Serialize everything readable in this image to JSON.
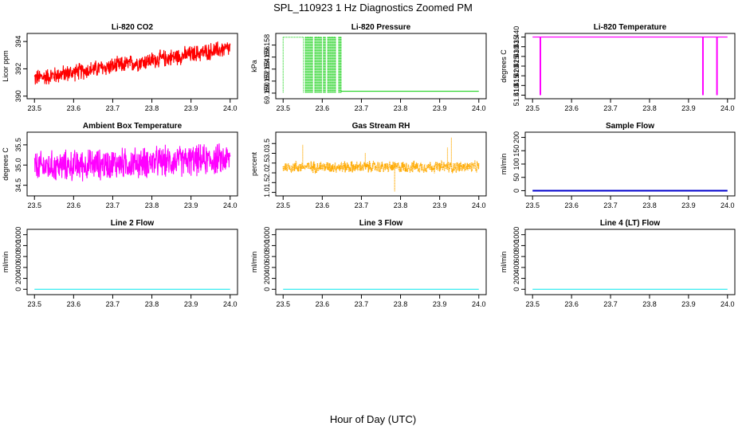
{
  "figure": {
    "title": "SPL_110923  1 Hz Diagnostics Zoomed PM",
    "xlabel": "Hour of Day (UTC)"
  },
  "chart_data": [
    {
      "id": "co2",
      "type": "line",
      "title": "Li-820 CO2",
      "ylabel": "Licor ppm",
      "color": "#ff0000",
      "pattern": "noise",
      "xlim": [
        23.5,
        24.0
      ],
      "ylim": [
        390,
        394.4
      ],
      "xticks": [
        23.5,
        23.6,
        23.7,
        23.8,
        23.9,
        24.0
      ],
      "xtick_labels": [
        "23.5",
        "23.6",
        "23.7",
        "23.8",
        "23.9",
        "24.0"
      ],
      "yticks": [
        390,
        392,
        394
      ],
      "ytick_labels": [
        "390",
        "392",
        "394"
      ],
      "series": [
        {
          "name": "CO2",
          "trend_start": 391.3,
          "trend_end": 393.5,
          "spread": 0.75,
          "min": 390.05,
          "max": 394.2
        }
      ]
    },
    {
      "id": "pressure",
      "type": "line",
      "title": "Li-820 Pressure",
      "ylabel": "kPa",
      "color": "#00cc00",
      "pattern": "blocks",
      "xlim": [
        23.5,
        24.0
      ],
      "ylim": [
        69.1495,
        69.1595
      ],
      "xticks": [
        23.5,
        23.6,
        23.7,
        23.8,
        23.9,
        24.0
      ],
      "xtick_labels": [
        "23.5",
        "23.6",
        "23.7",
        "23.8",
        "23.9",
        "24.0"
      ],
      "yticks": [
        69.15,
        69.152,
        69.154,
        69.156,
        69.158
      ],
      "ytick_labels": [
        "69.150",
        "69.152",
        "69.154",
        "69.156",
        "69.158"
      ],
      "series": [
        {
          "name": "Pressure",
          "low": 69.15,
          "high": 69.1593,
          "low_after": 69.1503,
          "high_blocks": [
            [
              23.5,
              23.552
            ],
            [
              23.557,
              23.575
            ],
            [
              23.581,
              23.598
            ],
            [
              23.603,
              23.608
            ],
            [
              23.614,
              23.634
            ],
            [
              23.642,
              23.648
            ]
          ]
        }
      ]
    },
    {
      "id": "temp820",
      "type": "line",
      "title": "Li-820 Temperature",
      "ylabel": "degrees C",
      "color": "#ff00ff",
      "pattern": "spikes",
      "xlim": [
        23.5,
        24.0
      ],
      "ylim": [
        51.4095,
        51.4405
      ],
      "xticks": [
        23.5,
        23.6,
        23.7,
        23.8,
        23.9,
        24.0
      ],
      "xtick_labels": [
        "23.5",
        "23.6",
        "23.7",
        "23.8",
        "23.9",
        "24.0"
      ],
      "yticks": [
        51.41,
        51.415,
        51.42,
        51.425,
        51.43,
        51.435,
        51.44
      ],
      "ytick_labels": [
        "51.410",
        "51.415",
        "51.420",
        "51.425",
        "51.430",
        "51.435",
        "51.440"
      ],
      "series": [
        {
          "name": "Temperature",
          "level": 51.44,
          "spike_low": 51.41,
          "spikes": [
            23.52,
            23.937,
            23.973
          ]
        }
      ]
    },
    {
      "id": "ambient",
      "type": "line",
      "title": "Ambient Box Temperature",
      "ylabel": "degrees C",
      "color": "#ff00ff",
      "pattern": "noise",
      "xlim": [
        23.5,
        24.0
      ],
      "ylim": [
        34.3,
        35.75
      ],
      "xticks": [
        23.5,
        23.6,
        23.7,
        23.8,
        23.9,
        24.0
      ],
      "xtick_labels": [
        "23.5",
        "23.6",
        "23.7",
        "23.8",
        "23.9",
        "24.0"
      ],
      "yticks": [
        34.5,
        35.0,
        35.5
      ],
      "ytick_labels": [
        "34.5",
        "35.0",
        "35.5"
      ],
      "series": [
        {
          "name": "Ambient",
          "trend_start": 34.95,
          "trend_end": 35.15,
          "spread": 0.45,
          "min": 34.35,
          "max": 35.7
        }
      ]
    },
    {
      "id": "rh",
      "type": "line",
      "title": "Gas Stream RH",
      "ylabel": "percent",
      "color": "#ffaa00",
      "pattern": "noise_dotted",
      "xlim": [
        23.5,
        24.0
      ],
      "ylim": [
        0.95,
        3.95
      ],
      "xticks": [
        23.5,
        23.6,
        23.7,
        23.8,
        23.9,
        24.0
      ],
      "xtick_labels": [
        "23.5",
        "23.6",
        "23.7",
        "23.8",
        "23.9",
        "24.0"
      ],
      "yticks": [
        1.0,
        1.5,
        2.0,
        2.5,
        3.0,
        3.5
      ],
      "ytick_labels": [
        "1.0",
        "1.5",
        "2.0",
        "2.5",
        "3.0",
        "3.5"
      ],
      "series": [
        {
          "name": "RH",
          "trend_start": 2.3,
          "trend_end": 2.3,
          "spread": 0.35,
          "min": 1.05,
          "max": 3.8,
          "outliers": [
            [
              23.55,
              3.45
            ],
            [
              23.71,
              3.0
            ],
            [
              23.785,
              1.05
            ],
            [
              23.93,
              3.8
            ],
            [
              23.92,
              3.3
            ]
          ]
        }
      ]
    },
    {
      "id": "sample",
      "type": "line",
      "title": "Sample Flow",
      "ylabel": "ml/min",
      "color": "#0000cc",
      "pattern": "flat",
      "xlim": [
        23.5,
        24.0
      ],
      "ylim": [
        -10,
        210
      ],
      "xticks": [
        23.5,
        23.6,
        23.7,
        23.8,
        23.9,
        24.0
      ],
      "xtick_labels": [
        "23.5",
        "23.6",
        "23.7",
        "23.8",
        "23.9",
        "24.0"
      ],
      "yticks": [
        0,
        50,
        100,
        150,
        200
      ],
      "ytick_labels": [
        "0",
        "50",
        "100",
        "150",
        "200"
      ],
      "series": [
        {
          "name": "Sample Flow",
          "value": 0
        }
      ]
    },
    {
      "id": "line2",
      "type": "line",
      "title": "Line 2 Flow",
      "ylabel": "ml/min",
      "color": "#00e5ee",
      "pattern": "flat",
      "xlim": [
        23.5,
        24.0
      ],
      "ylim": [
        -50,
        1050
      ],
      "xticks": [
        23.5,
        23.6,
        23.7,
        23.8,
        23.9,
        24.0
      ],
      "xtick_labels": [
        "23.5",
        "23.6",
        "23.7",
        "23.8",
        "23.9",
        "24.0"
      ],
      "yticks": [
        0,
        200,
        400,
        600,
        800,
        1000
      ],
      "ytick_labels": [
        "0",
        "200",
        "400",
        "600",
        "800",
        "1000"
      ],
      "series": [
        {
          "name": "Line 2",
          "value": 0
        }
      ]
    },
    {
      "id": "line3",
      "type": "line",
      "title": "Line 3 Flow",
      "ylabel": "ml/min",
      "color": "#00e5ee",
      "pattern": "flat",
      "xlim": [
        23.5,
        24.0
      ],
      "ylim": [
        -50,
        1050
      ],
      "xticks": [
        23.5,
        23.6,
        23.7,
        23.8,
        23.9,
        24.0
      ],
      "xtick_labels": [
        "23.5",
        "23.6",
        "23.7",
        "23.8",
        "23.9",
        "24.0"
      ],
      "yticks": [
        0,
        200,
        400,
        600,
        800,
        1000
      ],
      "ytick_labels": [
        "0",
        "200",
        "400",
        "600",
        "800",
        "1000"
      ],
      "series": [
        {
          "name": "Line 3",
          "value": 0
        }
      ]
    },
    {
      "id": "line4",
      "type": "line",
      "title": "Line 4 (LT) Flow",
      "ylabel": "ml/min",
      "color": "#00e5ee",
      "pattern": "flat",
      "xlim": [
        23.5,
        24.0
      ],
      "ylim": [
        -50,
        1050
      ],
      "xticks": [
        23.5,
        23.6,
        23.7,
        23.8,
        23.9,
        24.0
      ],
      "xtick_labels": [
        "23.5",
        "23.6",
        "23.7",
        "23.8",
        "23.9",
        "24.0"
      ],
      "yticks": [
        0,
        200,
        400,
        600,
        800,
        1000
      ],
      "ytick_labels": [
        "0",
        "200",
        "400",
        "600",
        "800",
        "1000"
      ],
      "series": [
        {
          "name": "Line 4 (LT)",
          "value": 0
        }
      ]
    }
  ]
}
